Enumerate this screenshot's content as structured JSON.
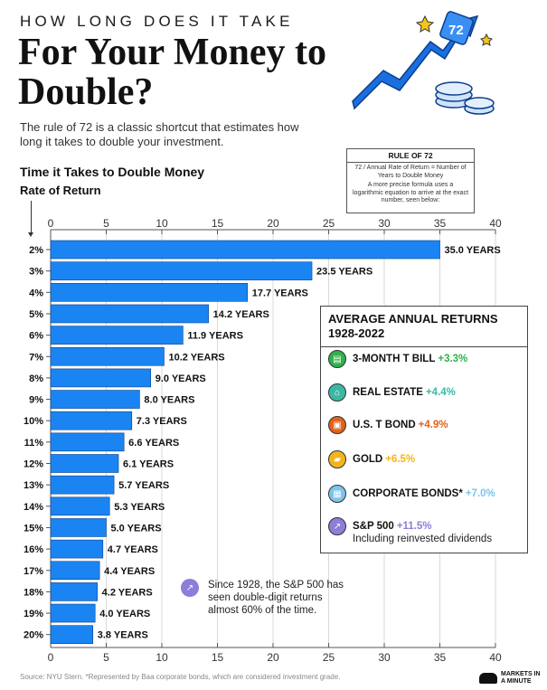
{
  "header": {
    "kicker": "HOW LONG DOES IT TAKE",
    "title": "For Your Money to Double?",
    "subtitle": "The rule of 72 is a classic shortcut that estimates how long it takes to double your investment."
  },
  "rule_box": {
    "title": "RULE OF 72",
    "formula": "72 / Annual Rate of Return = Number of Years to Double Money",
    "note": "A more precise formula uses a logarithmic equation to arrive at the exact number, seen below:"
  },
  "illustration": {
    "badge": "72",
    "icon": "rising-arrow-coins-icon"
  },
  "chart_data": {
    "type": "bar",
    "orientation": "horizontal",
    "title": "Time it Takes to Double Money",
    "ylabel": "Rate of Return",
    "xlabel": "",
    "xlim": [
      0,
      40
    ],
    "xticks": [
      0,
      5,
      10,
      15,
      20,
      25,
      30,
      35,
      40
    ],
    "categories": [
      "2%",
      "3%",
      "4%",
      "5%",
      "6%",
      "7%",
      "8%",
      "9%",
      "10%",
      "11%",
      "12%",
      "13%",
      "14%",
      "15%",
      "16%",
      "17%",
      "18%",
      "19%",
      "20%"
    ],
    "values": [
      35.0,
      23.5,
      17.7,
      14.2,
      11.9,
      10.2,
      9.0,
      8.0,
      7.3,
      6.6,
      6.1,
      5.7,
      5.3,
      5.0,
      4.7,
      4.4,
      4.2,
      4.0,
      3.8
    ],
    "value_labels": [
      "35.0 YEARS",
      "23.5 YEARS",
      "17.7 YEARS",
      "14.2 YEARS",
      "11.9 YEARS",
      "10.2 YEARS",
      "9.0 YEARS",
      "8.0 YEARS",
      "7.3 YEARS",
      "6.6 YEARS",
      "6.1 YEARS",
      "5.7 YEARS",
      "5.3 YEARS",
      "5.0 YEARS",
      "4.7 YEARS",
      "4.4 YEARS",
      "4.2 YEARS",
      "4.0 YEARS",
      "3.8 YEARS"
    ],
    "bar_color": "#1a85f2",
    "grid": true,
    "axis_position": "top-and-bottom"
  },
  "legend": {
    "title": "AVERAGE ANNUAL RETURNS 1928-2022",
    "items": [
      {
        "name": "3-MONTH T BILL",
        "value": "+3.3%",
        "color": "#2fb24a",
        "icon": "treasury-bill-icon"
      },
      {
        "name": "REAL ESTATE",
        "value": "+4.4%",
        "color": "#3bb8a4",
        "icon": "house-icon"
      },
      {
        "name": "U.S. T BOND",
        "value": "+4.9%",
        "color": "#e2621b",
        "icon": "bond-certificate-icon"
      },
      {
        "name": "GOLD",
        "value": "+6.5%",
        "color": "#f2b51d",
        "icon": "gold-bar-icon"
      },
      {
        "name": "CORPORATE BONDS*",
        "value": "+7.0%",
        "color": "#7cc4ec",
        "icon": "office-building-icon"
      },
      {
        "name": "S&P 500",
        "value": "+11.5%",
        "color": "#8d7ed8",
        "icon": "stock-chart-icon",
        "note": "Including reinvested dividends"
      }
    ]
  },
  "callout": {
    "text": "Since 1928, the S&P 500 has seen double-digit returns almost 60% of the time.",
    "icon": "stock-chart-icon"
  },
  "footer": {
    "source": "Source: NYU Stern. *Represented by Baa corporate bonds, which are considered investment grade.",
    "brand": "MARKETS IN A MINUTE"
  }
}
